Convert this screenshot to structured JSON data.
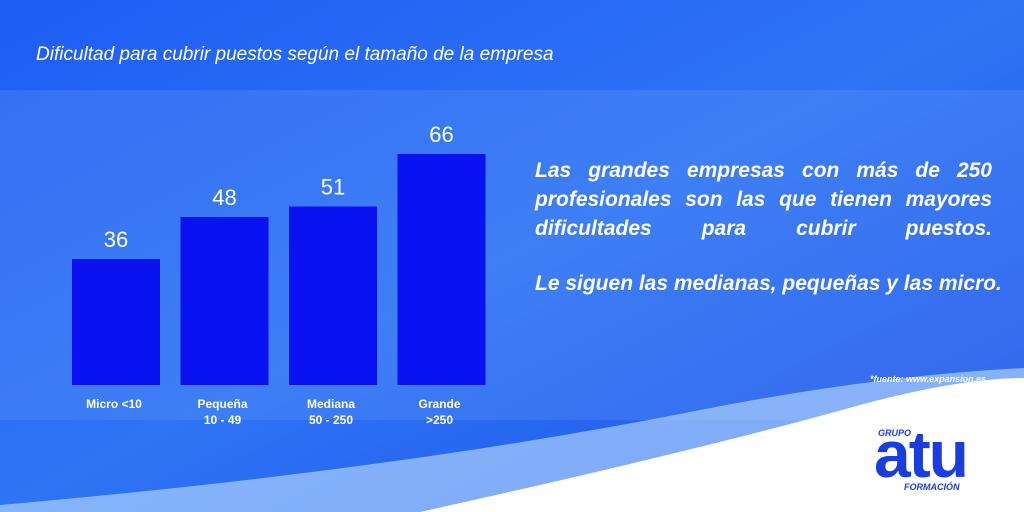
{
  "chart_data": {
    "type": "bar",
    "title": "Dificultad para cubrir puestos según el tamaño de la empresa",
    "categories": [
      [
        "Micro <10"
      ],
      [
        "Pequeña",
        "10 - 49"
      ],
      [
        "Mediana",
        "50 - 250"
      ],
      [
        "Grande",
        ">250"
      ]
    ],
    "values": [
      36,
      48,
      51,
      66
    ],
    "color": "#0a12f2"
  },
  "text": [
    "Las grandes empresas con más de 250 profesionales son las que tienen mayores dificultades para cubrir puestos.",
    "Le siguen las medianas, pequeñas y las micro."
  ],
  "source": "*fuente: www.expansion.es",
  "logo": {
    "group": "GRUPO",
    "name": "atu",
    "subtitle": "FORMACIÓN"
  }
}
